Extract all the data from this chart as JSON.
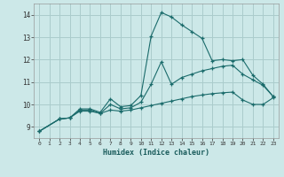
{
  "xlabel": "Humidex (Indice chaleur)",
  "ylabel": "",
  "bg_color": "#cce8e8",
  "grid_color": "#aacccc",
  "line_color": "#1a6b6b",
  "xlim": [
    -0.5,
    23.5
  ],
  "ylim": [
    8.5,
    14.5
  ],
  "xticks": [
    0,
    1,
    2,
    3,
    4,
    5,
    6,
    7,
    8,
    9,
    10,
    11,
    12,
    13,
    14,
    15,
    16,
    17,
    18,
    19,
    20,
    21,
    22,
    23
  ],
  "yticks": [
    9,
    10,
    11,
    12,
    13,
    14
  ],
  "series": [
    {
      "x": [
        0,
        2,
        3,
        4,
        5,
        6,
        7,
        8,
        9,
        10,
        11,
        12,
        13,
        14,
        15,
        16,
        17,
        18,
        19,
        20,
        21,
        22,
        23
      ],
      "y": [
        8.8,
        9.35,
        9.4,
        9.8,
        9.8,
        9.65,
        10.25,
        9.9,
        9.95,
        10.4,
        13.05,
        14.1,
        13.9,
        13.55,
        13.25,
        12.95,
        11.95,
        12.0,
        11.95,
        12.0,
        11.3,
        10.9,
        10.35
      ]
    },
    {
      "x": [
        0,
        2,
        3,
        4,
        5,
        6,
        7,
        8,
        9,
        10,
        11,
        12,
        13,
        14,
        15,
        16,
        17,
        18,
        19,
        20,
        21,
        22,
        23
      ],
      "y": [
        8.8,
        9.35,
        9.4,
        9.75,
        9.75,
        9.6,
        10.0,
        9.8,
        9.85,
        10.1,
        10.9,
        11.9,
        10.9,
        11.2,
        11.35,
        11.5,
        11.6,
        11.7,
        11.75,
        11.35,
        11.1,
        10.85,
        10.35
      ]
    },
    {
      "x": [
        0,
        2,
        3,
        4,
        5,
        6,
        7,
        8,
        9,
        10,
        11,
        12,
        13,
        14,
        15,
        16,
        17,
        18,
        19,
        20,
        21,
        22,
        23
      ],
      "y": [
        8.8,
        9.35,
        9.4,
        9.7,
        9.7,
        9.6,
        9.75,
        9.7,
        9.75,
        9.85,
        9.95,
        10.05,
        10.15,
        10.25,
        10.35,
        10.42,
        10.48,
        10.52,
        10.55,
        10.2,
        10.0,
        10.0,
        10.3
      ]
    }
  ]
}
